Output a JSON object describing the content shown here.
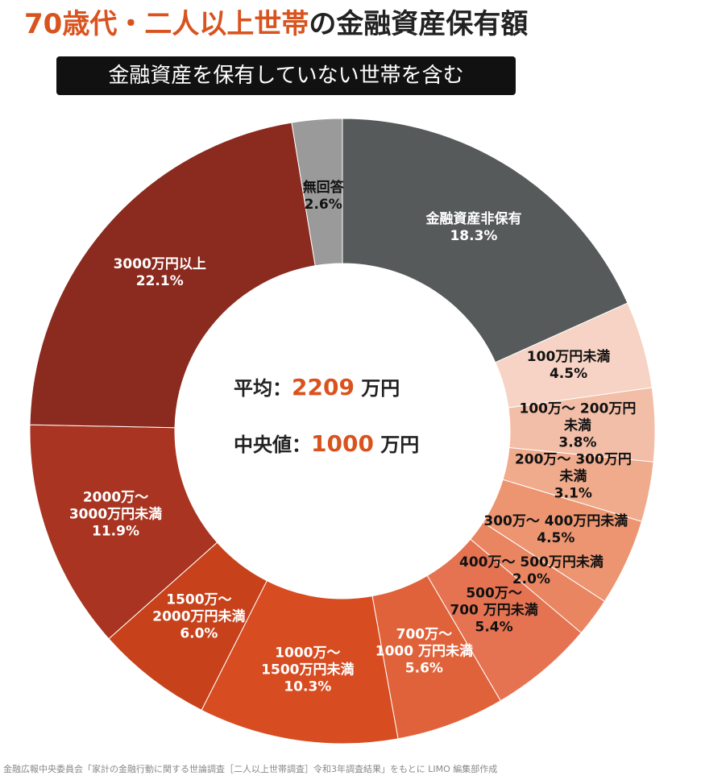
{
  "chart_data": {
    "type": "donut",
    "title_highlight": "70歳代・二人以上世帯",
    "title_rest": "の金融資産保有額",
    "subtitle": "金融資産を保有していない世帯を含む",
    "categories": [
      "金融資産非保有",
      "100万円未満",
      "100万～ 200万円未満",
      "200万～ 300万円未満",
      "300万～ 400万円未満",
      "400万～ 500万円未満",
      "500万～\n700 万円未満",
      "700万～\n1000 万円未満",
      "1000万～\n1500万円未満",
      "1500万～\n2000万円未満",
      "2000万～\n3000万円未満",
      "3000万円以上",
      "無回答"
    ],
    "values": [
      18.3,
      4.5,
      3.8,
      3.1,
      4.5,
      2.0,
      5.4,
      5.6,
      10.3,
      6.0,
      11.9,
      22.1,
      2.6
    ],
    "value_labels": [
      "18.3%",
      "4.5%",
      "3.8%",
      "3.1%",
      "4.5%",
      "2.0%",
      "5.4%",
      "5.6%",
      "10.3%",
      "6.0%",
      "11.9%",
      "22.1%",
      "2.6%"
    ],
    "colors": [
      "#575a5b",
      "#f6d3c4",
      "#f3bea7",
      "#f0aa8c",
      "#ec9570",
      "#e98560",
      "#e57352",
      "#e0623a",
      "#d84c21",
      "#c7421b",
      "#a83421",
      "#8b2a1e",
      "#9a9a9a"
    ],
    "center": {
      "mean_label": "平均：",
      "mean": 2209,
      "median_label": "中央値：",
      "median": 1000,
      "unit": "万円"
    },
    "source": "金融広報中央委員会「家計の金融行動に関する世論調査［二人以上世帯調査］令和3年調査結果」をもとに LIMO 編集部作成"
  }
}
